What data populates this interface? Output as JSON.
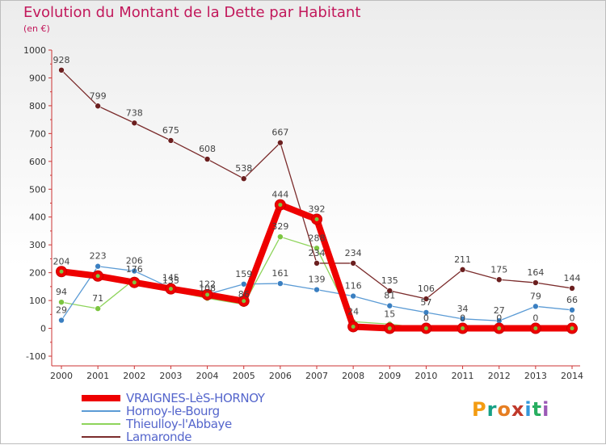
{
  "title": "Evolution du Montant de la Dette par Habitant",
  "unit": "(en €)",
  "logo": {
    "text": "Proxiti",
    "colors": [
      "#f39c12",
      "#16a085",
      "#e67e22",
      "#c0392b",
      "#3498db",
      "#27ae60",
      "#9b59b6"
    ]
  },
  "chart_data": {
    "type": "line",
    "title": "Evolution du Montant de la Dette par Habitant",
    "ylabel": "(en €)",
    "xlabel": "",
    "ylim": [
      -100,
      1000
    ],
    "yticks": [
      -100,
      0,
      100,
      200,
      300,
      400,
      500,
      600,
      700,
      800,
      900,
      1000
    ],
    "categories": [
      "2000",
      "2001",
      "2002",
      "2003",
      "2004",
      "2005",
      "2006",
      "2007",
      "2008",
      "2009",
      "2010",
      "2011",
      "2012",
      "2013",
      "2014"
    ],
    "grid": false,
    "legend": "bottom-left",
    "series": [
      {
        "name": "VRAIGNES-LèS-HORNOY",
        "color": "#ee0000",
        "marker": "#ee0000",
        "width": 8,
        "values": [
          204,
          188,
          165,
          142,
          121,
          98,
          444,
          392,
          6,
          0,
          0,
          0,
          0,
          0,
          0
        ],
        "labels": [
          "204",
          "",
          "",
          "",
          "",
          "",
          "444",
          "392",
          "",
          "",
          "",
          "",
          "",
          "",
          ""
        ]
      },
      {
        "name": "Hornoy-le-Bourg",
        "color": "#5b9bd5",
        "marker": "#3a7fc1",
        "width": 1.3,
        "values": [
          29,
          223,
          206,
          145,
          122,
          159,
          161,
          139,
          116,
          81,
          57,
          34,
          27,
          79,
          66
        ],
        "labels": [
          "29",
          "223",
          "206",
          "145",
          "122",
          "159",
          "161",
          "139",
          "116",
          "81",
          "57",
          "34",
          "27",
          "79",
          "66"
        ]
      },
      {
        "name": "Thieulloy-l'Abbaye",
        "color": "#8ed45b",
        "marker": "#7cc540",
        "width": 1.3,
        "values": [
          94,
          71,
          176,
          135,
          108,
          86,
          329,
          288,
          24,
          15,
          0,
          0,
          0,
          0,
          0
        ],
        "labels": [
          "94",
          "71",
          "176",
          "135",
          "108",
          "86",
          "329",
          "288",
          "24",
          "15",
          "0",
          "0",
          "0",
          "0",
          "0"
        ]
      },
      {
        "name": "Lamaronde",
        "color": "#7b2c2c",
        "marker": "#6b1f1f",
        "width": 1.3,
        "values": [
          928,
          799,
          738,
          675,
          608,
          538,
          667,
          234,
          234,
          135,
          106,
          211,
          175,
          164,
          144
        ],
        "labels": [
          "928",
          "799",
          "738",
          "675",
          "608",
          "538",
          "667",
          "234",
          "234",
          "135",
          "106",
          "211",
          "175",
          "164",
          "144"
        ]
      }
    ]
  }
}
